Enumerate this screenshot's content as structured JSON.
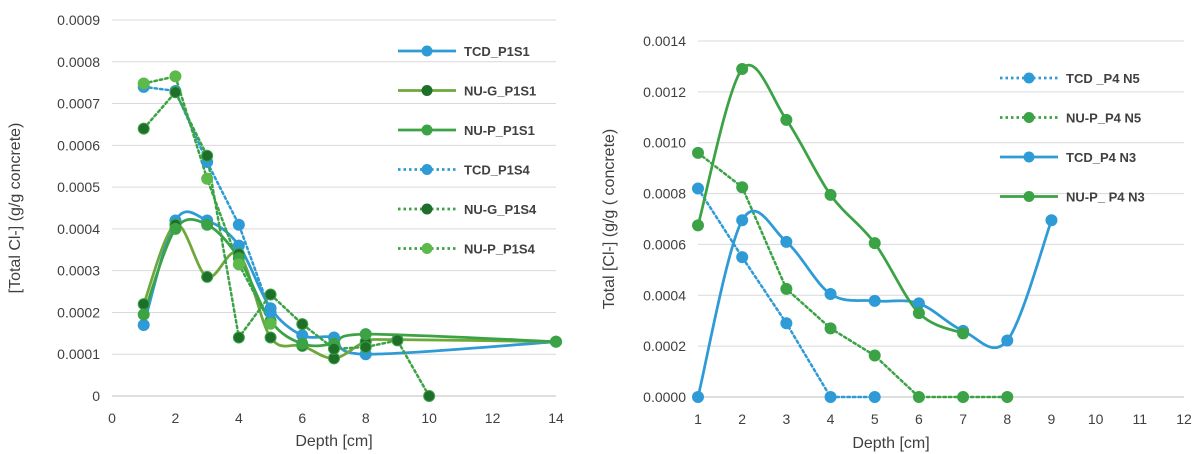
{
  "colors": {
    "blue": "#2E9BD6",
    "green": "#3BA345",
    "dark_green": "#1F6E2A",
    "olive_green": "#6EA83A",
    "light_green": "#5DB94A",
    "grid": "#D9D9D9",
    "text": "#404040"
  },
  "chart_data": [
    {
      "type": "line",
      "title": "",
      "xlabel": "Depth [cm]",
      "ylabel": "[Total Cl-] (g/g concrete)",
      "xlim": [
        0,
        14
      ],
      "ylim": [
        0,
        0.0009
      ],
      "xticks": [
        "0",
        "2",
        "4",
        "6",
        "8",
        "10",
        "12",
        "14"
      ],
      "yticks": [
        "0",
        "0.0001",
        "0.0002",
        "0.0003",
        "0.0004",
        "0.0005",
        "0.0006",
        "0.0007",
        "0.0008",
        "0.0009"
      ],
      "grid": "horizontal",
      "legend_position": "right",
      "series": [
        {
          "name": "TCD_P1S1",
          "style": "solid",
          "color": "#2E9BD6",
          "marker": "#2E9BD6",
          "x": [
            1,
            2,
            3,
            4,
            5,
            6,
            7,
            8,
            14
          ],
          "y": [
            0.00017,
            0.00042,
            0.00042,
            0.00036,
            0.00021,
            0.000145,
            0.00014,
            0.0001,
            0.00013
          ]
        },
        {
          "name": "NU-G_P1S1",
          "style": "solid",
          "color": "#6EA83A",
          "marker": "#1F6E2A",
          "x": [
            1,
            2,
            3,
            4,
            5,
            6,
            7,
            8,
            9,
            14
          ],
          "y": [
            0.00022,
            0.00041,
            0.000285,
            0.00034,
            0.00014,
            0.00012,
            9e-05,
            0.00013,
            0.000135,
            0.00013
          ]
        },
        {
          "name": "NU-P_P1S1",
          "style": "solid",
          "color": "#3BA345",
          "marker": "#3BA345",
          "x": [
            1,
            2,
            3,
            4,
            5,
            6,
            7,
            8,
            14
          ],
          "y": [
            0.000195,
            0.0004,
            0.00041,
            0.00033,
            0.00018,
            0.000125,
            0.000125,
            0.000148,
            0.00013
          ]
        },
        {
          "name": "TCD_P1S4",
          "style": "dotted",
          "color": "#2E9BD6",
          "marker": "#2E9BD6",
          "x": [
            1,
            2,
            3,
            4,
            5
          ],
          "y": [
            0.00074,
            0.00073,
            0.00056,
            0.00041,
            0.0002
          ]
        },
        {
          "name": "NU-G_P1S4",
          "style": "dotted",
          "color": "#3BA345",
          "marker": "#1F6E2A",
          "x": [
            1,
            2,
            3,
            4,
            5,
            6,
            7,
            8,
            9,
            10
          ],
          "y": [
            0.00064,
            0.000727,
            0.000575,
            0.00014,
            0.000243,
            0.000172,
            0.000113,
            0.000117,
            0.000133,
            0.0
          ]
        },
        {
          "name": "NU-P_P1S4",
          "style": "dotted",
          "color": "#3BA345",
          "marker": "#5DB94A",
          "x": [
            1,
            2,
            3,
            4,
            5
          ],
          "y": [
            0.000748,
            0.000765,
            0.00052,
            0.000315,
            0.000173
          ]
        }
      ]
    },
    {
      "type": "line",
      "title": "",
      "xlabel": "Depth [cm]",
      "ylabel": "Total [Cl-] (g/g ( concrete)",
      "xlim": [
        1,
        12
      ],
      "ylim": [
        0,
        0.0014
      ],
      "xticks": [
        "1",
        "2",
        "3",
        "4",
        "5",
        "6",
        "7",
        "8",
        "9",
        "10",
        "11",
        "12"
      ],
      "yticks": [
        "0.0000",
        "0.0002",
        "0.0004",
        "0.0006",
        "0.0008",
        "0.0010",
        "0.0012",
        "0.0014"
      ],
      "grid": "horizontal",
      "legend_position": "right",
      "series": [
        {
          "name": "TCD _P4 N5",
          "style": "dotted",
          "color": "#2E9BD6",
          "marker": "#2E9BD6",
          "x": [
            1,
            2,
            3,
            4,
            5
          ],
          "y": [
            0.00082,
            0.00055,
            0.00029,
            0.0,
            0.0
          ]
        },
        {
          "name": "NU-P_P4 N5",
          "style": "dotted",
          "color": "#3BA345",
          "marker": "#3BA345",
          "x": [
            1,
            2,
            3,
            4,
            5,
            6,
            7,
            8
          ],
          "y": [
            0.00096,
            0.000825,
            0.000425,
            0.00027,
            0.000163,
            0.0,
            0.0,
            0.0
          ]
        },
        {
          "name": "TCD_P4 N3",
          "style": "solid",
          "color": "#2E9BD6",
          "marker": "#2E9BD6",
          "x": [
            1,
            2,
            3,
            4,
            5,
            6,
            7,
            8,
            9
          ],
          "y": [
            0.0,
            0.000695,
            0.00061,
            0.000405,
            0.000378,
            0.000368,
            0.00026,
            0.000222,
            0.000695
          ]
        },
        {
          "name": "NU-P_ P4 N3",
          "style": "solid",
          "color": "#3BA345",
          "marker": "#3BA345",
          "x": [
            1,
            2,
            3,
            4,
            5,
            6,
            7
          ],
          "y": [
            0.000675,
            0.00129,
            0.00109,
            0.000795,
            0.000605,
            0.00033,
            0.00025
          ]
        }
      ]
    }
  ]
}
